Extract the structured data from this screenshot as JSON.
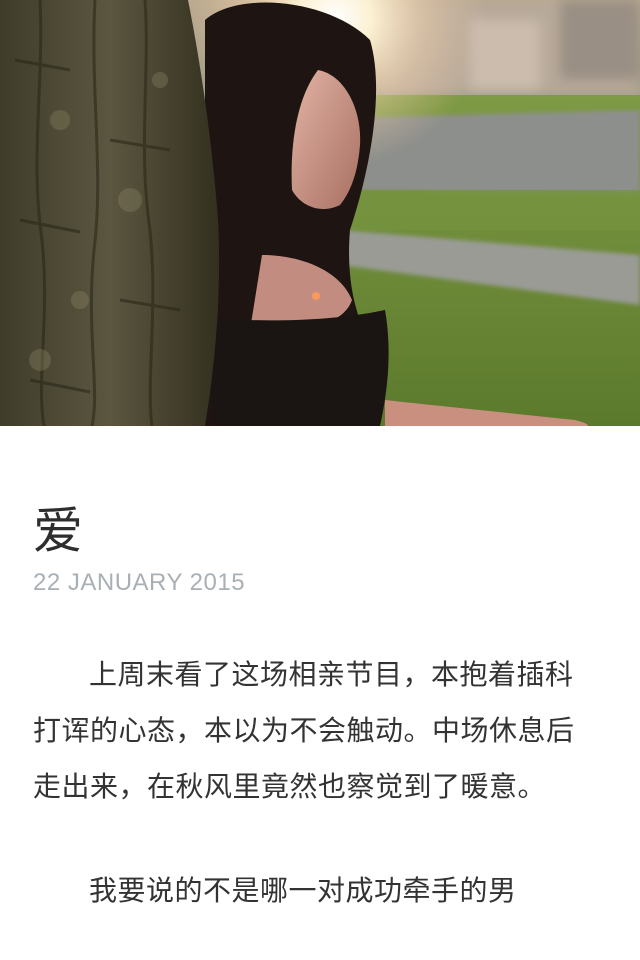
{
  "post": {
    "title": "爱",
    "date": "22 JANUARY 2015",
    "paragraphs": [
      "上周末看了这场相亲节目，本抱着插科打诨的心态，本以为不会触动。中场休息后走出来，在秋风里竟然也察觉到了暖意。",
      "我要说的不是哪一对成功牵手的男"
    ]
  },
  "hero": {
    "colors": {
      "grass": "#6f8a3e",
      "path": "#8b8e8c",
      "bark": "#4d4a35",
      "sun": "#fff6dc",
      "hair": "#1e1512",
      "skin": "#c79488"
    }
  }
}
